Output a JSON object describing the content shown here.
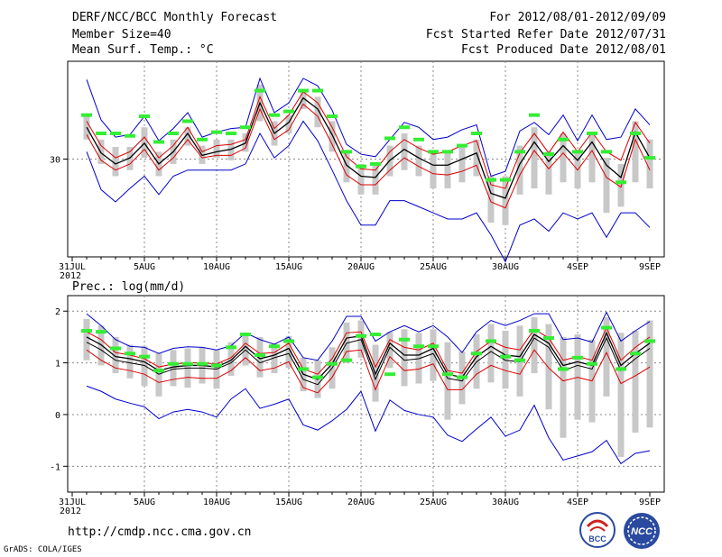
{
  "header": {
    "title": "DERF/NCC/BCC Monthly Forecast",
    "member_size": "Member Size=40",
    "variable_1": "Mean Surf. Temp.: °C",
    "period": "For 2012/08/01-2012/09/09",
    "started": "Fcst Started Refer Date 2012/07/31",
    "produced": "Fcst Produced Date 2012/08/01"
  },
  "footer": {
    "url": "http://cmdp.ncc.cma.gov.cn",
    "credit": "GrADS: COLA/IGES",
    "logo_bcc": "BCC",
    "logo_ncc": "NCC"
  },
  "colors": {
    "envelope": "#0000cc",
    "spread": "#dd0000",
    "mean": "#000000",
    "bars": "#c8c8c8",
    "marks": "#33ee33",
    "grid": "#888888"
  },
  "chart_data": [
    {
      "type": "line",
      "title": "Mean Surf. Temp.: °C",
      "ylim": [
        22,
        38
      ],
      "yticks": [
        30
      ],
      "x_tick_labels": [
        "31JUL\n2012",
        "5AUG",
        "10AUG",
        "15AUG",
        "20AUG",
        "25AUG",
        "30AUG",
        "4SEP",
        "9SEP"
      ],
      "x_tick_positions": [
        0,
        5,
        10,
        15,
        20,
        25,
        30,
        35,
        40
      ],
      "x_days": [
        1,
        2,
        3,
        4,
        5,
        6,
        7,
        8,
        9,
        10,
        11,
        12,
        13,
        14,
        15,
        16,
        17,
        18,
        19,
        20,
        21,
        22,
        23,
        24,
        25,
        26,
        27,
        28,
        29,
        30,
        31,
        32,
        33,
        34,
        35,
        36,
        37,
        38,
        39,
        40
      ],
      "series": [
        {
          "name": "max",
          "values": [
            36.5,
            33.2,
            31.8,
            32,
            33.5,
            31.5,
            32.5,
            33.8,
            31.8,
            32.2,
            32.5,
            32.6,
            36.6,
            33.8,
            34.6,
            36.6,
            36,
            34,
            31.2,
            30.4,
            30.2,
            31.6,
            33,
            32.6,
            31.6,
            31.8,
            32.4,
            32.8,
            28.6,
            29,
            32.3,
            33,
            32,
            33.6,
            31.5,
            33.6,
            31.6,
            31.8,
            34.1,
            32.8
          ]
        },
        {
          "name": "upper",
          "values": [
            33.1,
            31.1,
            30.1,
            30.6,
            31.8,
            30.1,
            31.1,
            32.6,
            30.6,
            31.1,
            31.2,
            31.6,
            35.1,
            32.5,
            33.6,
            35.5,
            34.6,
            32.6,
            30.2,
            29.2,
            29.1,
            30.6,
            31.6,
            30.9,
            30.4,
            30.6,
            31.1,
            31.5,
            27.9,
            27.6,
            30.5,
            32.1,
            30.5,
            32.2,
            30.6,
            32.2,
            30.6,
            29.9,
            33,
            31.3
          ]
        },
        {
          "name": "mean",
          "values": [
            32.6,
            30.5,
            29.6,
            30.1,
            31.3,
            29.6,
            30.6,
            32.1,
            30.3,
            30.6,
            30.8,
            31.3,
            34.6,
            32.1,
            33,
            35,
            34.1,
            32,
            29.5,
            28.6,
            28.5,
            29.9,
            30.8,
            30.1,
            29.5,
            29.5,
            30,
            30.5,
            27.2,
            26.8,
            29.6,
            31.4,
            29.8,
            31.1,
            29.9,
            31.4,
            29.5,
            28.5,
            32.2,
            30.1
          ]
        },
        {
          "name": "lower",
          "values": [
            32,
            29.9,
            29.1,
            29.6,
            30.8,
            29.1,
            30.1,
            31.6,
            30.1,
            30.3,
            30.3,
            30.9,
            34.1,
            31.6,
            32.4,
            34.5,
            33.5,
            31.2,
            28.7,
            27.9,
            27.9,
            29.1,
            30.1,
            29.4,
            28.8,
            28.7,
            29,
            29.5,
            26.5,
            26,
            28.7,
            30.7,
            29.2,
            30.5,
            29.1,
            30.7,
            28.5,
            27.7,
            31.6,
            29.1
          ]
        },
        {
          "name": "min",
          "values": [
            30.6,
            27.5,
            26.5,
            27.6,
            28.6,
            27.1,
            28.6,
            29.1,
            29.1,
            29.1,
            29.1,
            29.6,
            32.1,
            30.1,
            31.1,
            33.1,
            31.5,
            29.1,
            26.6,
            24.6,
            24.6,
            26.6,
            26.6,
            26.1,
            25.6,
            25.1,
            25.1,
            25.6,
            23.8,
            21.6,
            24.6,
            25.1,
            24.1,
            25.6,
            25.1,
            25.6,
            23.6,
            25.6,
            25.6,
            24.4
          ]
        },
        {
          "name": "bar_top",
          "values": [
            33.6,
            31.6,
            31,
            31,
            32.6,
            30.6,
            31.6,
            32.6,
            31.1,
            31.6,
            31.6,
            32.1,
            36.1,
            33.1,
            33.6,
            35.6,
            35.1,
            33.1,
            30.6,
            29.6,
            29.6,
            31.1,
            32.1,
            31.1,
            30.6,
            30.6,
            31.1,
            31.6,
            28.6,
            28.6,
            31.1,
            32.6,
            30.6,
            32.1,
            30.6,
            32.1,
            30.1,
            29.6,
            33.1,
            31.6
          ]
        },
        {
          "name": "bar_bottom",
          "values": [
            31.6,
            29.6,
            28.6,
            29.1,
            30.1,
            28.6,
            29.6,
            31.1,
            29.6,
            30.1,
            29.9,
            30.6,
            33.1,
            31.1,
            32.1,
            34.1,
            32.6,
            30.6,
            28.1,
            27.1,
            27.1,
            28.6,
            29.1,
            28.6,
            27.6,
            27.6,
            28.1,
            28.6,
            24.8,
            24.6,
            27.1,
            27.6,
            27.1,
            28.1,
            27.6,
            28.1,
            25.6,
            26.1,
            28.1,
            27.6
          ]
        },
        {
          "name": "observed",
          "values": [
            33.6,
            32.1,
            32.1,
            31.9,
            33.5,
            31.4,
            32.1,
            33.1,
            31.6,
            32.2,
            32.1,
            32.6,
            35.6,
            33.6,
            33.9,
            35.6,
            35.6,
            33.5,
            30.6,
            29.4,
            29.6,
            31.7,
            32.6,
            31.6,
            30.6,
            30.6,
            31.1,
            32.1,
            28.3,
            28.3,
            30.6,
            33.6,
            30.4,
            31.6,
            30.6,
            32.1,
            30.6,
            28.1,
            32.1,
            30.1
          ]
        }
      ]
    },
    {
      "type": "line",
      "title": "Prec.: log(mm/d)",
      "ylim": [
        -1.5,
        2.3
      ],
      "yticks": [
        2,
        1,
        0,
        -1
      ],
      "x_tick_labels": [
        "31JUL\n2012",
        "5AUG",
        "10AUG",
        "15AUG",
        "20AUG",
        "25AUG",
        "30AUG",
        "4SEP",
        "9SEP"
      ],
      "x_tick_positions": [
        0,
        5,
        10,
        15,
        20,
        25,
        30,
        35,
        40
      ],
      "x_days": [
        1,
        2,
        3,
        4,
        5,
        6,
        7,
        8,
        9,
        10,
        11,
        12,
        13,
        14,
        15,
        16,
        17,
        18,
        19,
        20,
        21,
        22,
        23,
        24,
        25,
        26,
        27,
        28,
        29,
        30,
        31,
        32,
        33,
        34,
        35,
        36,
        37,
        38,
        39,
        40
      ],
      "series": [
        {
          "name": "max",
          "values": [
            1.95,
            1.72,
            1.45,
            1.32,
            1.3,
            1.18,
            1.28,
            1.31,
            1.3,
            1.25,
            1.33,
            1.58,
            1.45,
            1.36,
            1.5,
            1.1,
            1.05,
            1.42,
            1.9,
            1.9,
            1.42,
            1.6,
            1.72,
            1.6,
            1.72,
            1.5,
            1.2,
            1.6,
            1.82,
            1.72,
            1.82,
            1.95,
            1.95,
            1.45,
            1.48,
            1.4,
            1.98,
            1.42,
            1.62,
            1.8
          ]
        },
        {
          "name": "upper",
          "values": [
            1.6,
            1.45,
            1.2,
            1.15,
            1.08,
            0.92,
            0.98,
            1,
            1,
            0.98,
            1.1,
            1.38,
            1.18,
            1.2,
            1.38,
            0.88,
            0.78,
            1.08,
            1.58,
            1.6,
            0.92,
            1.45,
            1.3,
            1.25,
            1.38,
            0.85,
            0.8,
            1.22,
            1.42,
            1.3,
            1.25,
            1.65,
            1.48,
            1.05,
            1.12,
            1.05,
            1.68,
            1.05,
            1.3,
            1.5
          ]
        },
        {
          "name": "mean",
          "values": [
            1.5,
            1.35,
            1.12,
            1.08,
            1.02,
            0.85,
            0.92,
            0.95,
            0.95,
            0.92,
            1.05,
            1.32,
            1.08,
            1.15,
            1.28,
            0.78,
            0.68,
            0.98,
            1.48,
            1.52,
            0.78,
            1.38,
            1.15,
            1.15,
            1.28,
            0.78,
            0.72,
            1.12,
            1.32,
            1.15,
            1.12,
            1.55,
            1.38,
            0.95,
            1.02,
            0.95,
            1.58,
            0.95,
            1.18,
            1.38
          ]
        },
        {
          "name": "lower",
          "values": [
            1.4,
            1.25,
            1.05,
            1.0,
            0.95,
            0.78,
            0.88,
            0.9,
            0.9,
            0.88,
            1.0,
            1.25,
            1.0,
            1.1,
            1.18,
            0.68,
            0.58,
            0.9,
            1.38,
            1.45,
            0.68,
            1.3,
            1.05,
            1.08,
            1.18,
            0.7,
            0.65,
            1.02,
            1.22,
            1.05,
            1.02,
            1.48,
            1.3,
            0.85,
            0.95,
            0.88,
            1.48,
            0.85,
            1.08,
            1.28
          ]
        },
        {
          "name": "lower_red",
          "values": [
            1.25,
            1.05,
            0.9,
            0.85,
            0.78,
            0.62,
            0.68,
            0.72,
            0.7,
            0.7,
            0.85,
            1.1,
            0.85,
            0.9,
            1.02,
            0.52,
            0.42,
            0.72,
            1.22,
            1.25,
            0.48,
            1.12,
            0.85,
            0.88,
            0.98,
            0.48,
            0.48,
            0.78,
            0.95,
            0.85,
            0.78,
            1.25,
            0.9,
            0.65,
            0.72,
            0.65,
            1.2,
            0.6,
            0.75,
            0.92
          ]
        },
        {
          "name": "min",
          "values": [
            0.55,
            0.45,
            0.3,
            0.22,
            0.15,
            -0.08,
            0.05,
            0.1,
            0.05,
            -0.05,
            0.3,
            0.5,
            0.12,
            0.2,
            0.3,
            -0.2,
            -0.3,
            -0.12,
            0.1,
            0.45,
            -0.32,
            0.28,
            0.08,
            0,
            -0.05,
            -0.4,
            -0.52,
            -0.28,
            -0.05,
            -0.42,
            -0.3,
            0.18,
            -0.45,
            -0.88,
            -0.8,
            -0.72,
            -0.5,
            -0.95,
            -0.75,
            -0.7
          ]
        },
        {
          "name": "bar_top",
          "values": [
            1.85,
            1.72,
            1.5,
            1.35,
            1.32,
            1.18,
            1.25,
            1.28,
            1.3,
            1.25,
            1.4,
            1.55,
            1.5,
            1.38,
            1.52,
            1.1,
            1.05,
            1.3,
            1.78,
            1.82,
            1.35,
            1.6,
            1.65,
            1.58,
            1.65,
            1.4,
            1.22,
            1.55,
            1.75,
            1.62,
            1.72,
            1.88,
            1.75,
            1.5,
            1.55,
            1.45,
            1.88,
            1.58,
            1.62,
            1.82
          ]
        },
        {
          "name": "bar_bottom",
          "values": [
            1.05,
            0.95,
            0.8,
            0.7,
            0.55,
            0.35,
            0.55,
            0.52,
            0.6,
            0.5,
            0.75,
            0.95,
            0.72,
            0.8,
            0.9,
            0.45,
            0.32,
            0.5,
            1.0,
            1.1,
            0.25,
            0.9,
            0.55,
            0.6,
            0.65,
            -0.1,
            0.2,
            0.5,
            0.62,
            0.5,
            0.35,
            0.8,
            0.1,
            -0.45,
            -0.1,
            -0.15,
            0.35,
            -0.82,
            -0.35,
            -0.25
          ]
        },
        {
          "name": "observed",
          "values": [
            1.62,
            1.6,
            1.28,
            1.18,
            1.12,
            0.85,
            0.98,
            0.98,
            0.98,
            0.95,
            1.3,
            1.55,
            1.15,
            1.32,
            1.42,
            0.88,
            0.72,
            0.98,
            1.05,
            1.52,
            1.55,
            0.78,
            1.45,
            1.32,
            1.32,
            0.78,
            0.72,
            1.18,
            1.42,
            1.12,
            1.05,
            1.62,
            1.48,
            0.88,
            1.1,
            0.98,
            1.68,
            0.88,
            1.18,
            1.42
          ]
        }
      ]
    }
  ]
}
